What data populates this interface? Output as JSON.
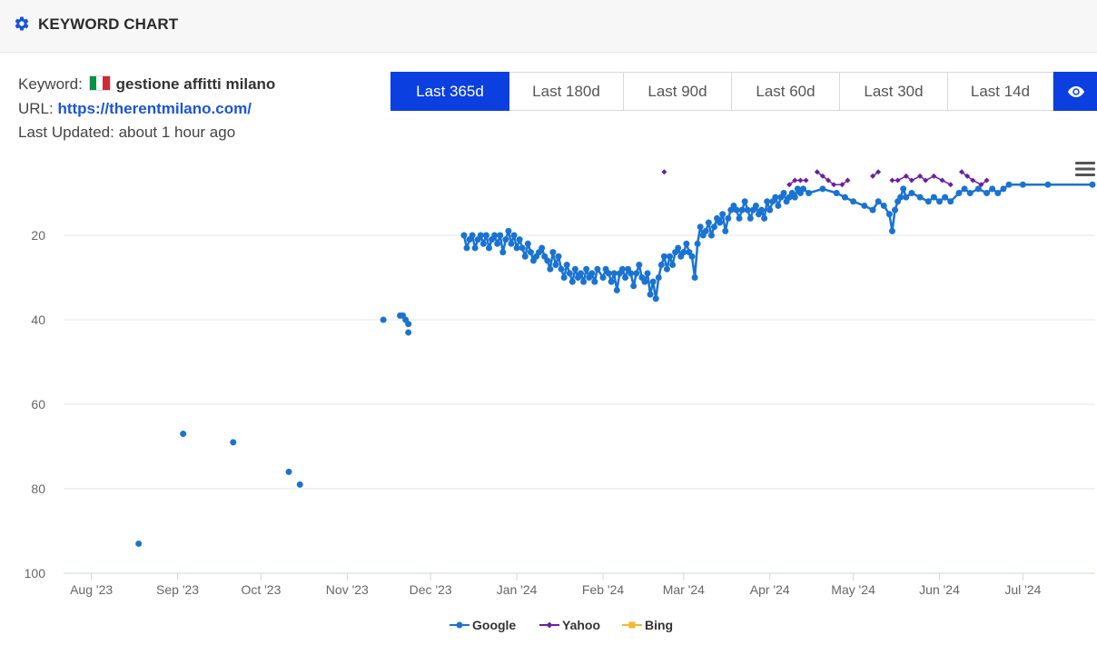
{
  "header": {
    "title": "KEYWORD CHART",
    "icon": "gear-icon"
  },
  "info": {
    "keyword_label": "Keyword:",
    "keyword": "gestione affitti milano",
    "flag": {
      "name": "italy-flag-icon",
      "colors": [
        "#009246",
        "#ffffff",
        "#ce2b37"
      ]
    },
    "url_label": "URL:",
    "url": "https://therentmilano.com/",
    "updated_label": "Last Updated:",
    "updated": "about 1 hour ago"
  },
  "ranges": {
    "buttons": [
      "Last 365d",
      "Last 180d",
      "Last 90d",
      "Last 60d",
      "Last 30d",
      "Last 14d"
    ],
    "active_index": 0,
    "eye_icon": "eye-icon"
  },
  "colors": {
    "accent": "#0b3fe0",
    "google": "#1a73d2",
    "yahoo": "#6b1fa0",
    "bing": "#f5b82e"
  },
  "chart_data": {
    "type": "line",
    "title": "",
    "xlabel": "",
    "ylabel": "",
    "y_reversed": true,
    "ylim": [
      100,
      5
    ],
    "y_ticks": [
      20,
      40,
      60,
      80,
      100
    ],
    "x_ticks": [
      {
        "date": "2023-08-01",
        "label": "Aug '23"
      },
      {
        "date": "2023-09-01",
        "label": "Sep '23"
      },
      {
        "date": "2023-10-01",
        "label": "Oct '23"
      },
      {
        "date": "2023-11-01",
        "label": "Nov '23"
      },
      {
        "date": "2023-12-01",
        "label": "Dec '23"
      },
      {
        "date": "2024-01-01",
        "label": "Jan '24"
      },
      {
        "date": "2024-02-01",
        "label": "Feb '24"
      },
      {
        "date": "2024-03-01",
        "label": "Mar '24"
      },
      {
        "date": "2024-04-01",
        "label": "Apr '24"
      },
      {
        "date": "2024-05-01",
        "label": "May '24"
      },
      {
        "date": "2024-06-01",
        "label": "Jun '24"
      },
      {
        "date": "2024-07-01",
        "label": "Jul '24"
      }
    ],
    "xlim": [
      "2023-07-22",
      "2024-07-27"
    ],
    "grid": true,
    "legend": "bottom-center",
    "series": [
      {
        "name": "Google",
        "color": "#1a73d2",
        "marker": "circle",
        "scatter_points": [
          [
            "2023-08-18",
            93
          ],
          [
            "2023-09-03",
            67
          ],
          [
            "2023-09-21",
            69
          ],
          [
            "2023-10-11",
            76
          ],
          [
            "2023-10-15",
            79
          ],
          [
            "2023-11-14",
            40
          ],
          [
            "2023-11-20",
            39
          ],
          [
            "2023-11-21",
            39
          ],
          [
            "2023-11-22",
            40
          ],
          [
            "2023-11-23",
            41
          ],
          [
            "2023-11-23",
            43
          ]
        ],
        "line_points": [
          [
            "2023-12-13",
            20
          ],
          [
            "2023-12-14",
            23
          ],
          [
            "2023-12-15",
            21
          ],
          [
            "2023-12-16",
            20
          ],
          [
            "2023-12-17",
            23
          ],
          [
            "2023-12-18",
            21
          ],
          [
            "2023-12-19",
            20
          ],
          [
            "2023-12-20",
            22
          ],
          [
            "2023-12-21",
            20
          ],
          [
            "2023-12-22",
            23
          ],
          [
            "2023-12-23",
            21
          ],
          [
            "2023-12-24",
            20
          ],
          [
            "2023-12-25",
            22
          ],
          [
            "2023-12-26",
            20
          ],
          [
            "2023-12-27",
            24
          ],
          [
            "2023-12-28",
            21
          ],
          [
            "2023-12-29",
            19
          ],
          [
            "2023-12-30",
            22
          ],
          [
            "2023-12-31",
            20
          ],
          [
            "2024-01-01",
            23
          ],
          [
            "2024-01-02",
            21
          ],
          [
            "2024-01-03",
            23
          ],
          [
            "2024-01-04",
            25
          ],
          [
            "2024-01-05",
            22
          ],
          [
            "2024-01-06",
            24
          ],
          [
            "2024-01-07",
            26
          ],
          [
            "2024-01-08",
            25
          ],
          [
            "2024-01-09",
            24
          ],
          [
            "2024-01-10",
            23
          ],
          [
            "2024-01-11",
            25
          ],
          [
            "2024-01-12",
            26
          ],
          [
            "2024-01-13",
            28
          ],
          [
            "2024-01-14",
            24
          ],
          [
            "2024-01-15",
            27
          ],
          [
            "2024-01-16",
            25
          ],
          [
            "2024-01-17",
            28
          ],
          [
            "2024-01-18",
            30
          ],
          [
            "2024-01-19",
            27
          ],
          [
            "2024-01-20",
            29
          ],
          [
            "2024-01-21",
            31
          ],
          [
            "2024-01-22",
            28
          ],
          [
            "2024-01-23",
            30
          ],
          [
            "2024-01-24",
            29
          ],
          [
            "2024-01-25",
            31
          ],
          [
            "2024-01-26",
            28
          ],
          [
            "2024-01-27",
            30
          ],
          [
            "2024-01-28",
            29
          ],
          [
            "2024-01-29",
            31
          ],
          [
            "2024-01-30",
            28
          ],
          [
            "2024-02-01",
            30
          ],
          [
            "2024-02-02",
            28
          ],
          [
            "2024-02-03",
            29
          ],
          [
            "2024-02-04",
            31
          ],
          [
            "2024-02-05",
            29
          ],
          [
            "2024-02-06",
            33
          ],
          [
            "2024-02-07",
            29
          ],
          [
            "2024-02-08",
            28
          ],
          [
            "2024-02-09",
            30
          ],
          [
            "2024-02-10",
            28
          ],
          [
            "2024-02-11",
            29
          ],
          [
            "2024-02-12",
            32
          ],
          [
            "2024-02-13",
            29
          ],
          [
            "2024-02-14",
            27
          ],
          [
            "2024-02-15",
            30
          ],
          [
            "2024-02-16",
            31
          ],
          [
            "2024-02-17",
            29
          ],
          [
            "2024-02-18",
            34
          ],
          [
            "2024-02-19",
            31
          ],
          [
            "2024-02-20",
            35
          ],
          [
            "2024-02-21",
            30
          ],
          [
            "2024-02-22",
            27
          ],
          [
            "2024-02-23",
            25
          ],
          [
            "2024-02-24",
            28
          ],
          [
            "2024-02-25",
            25
          ],
          [
            "2024-02-26",
            27
          ],
          [
            "2024-02-27",
            24
          ],
          [
            "2024-02-28",
            23
          ],
          [
            "2024-02-29",
            25
          ],
          [
            "2024-03-01",
            24
          ],
          [
            "2024-03-02",
            22
          ],
          [
            "2024-03-03",
            24
          ],
          [
            "2024-03-04",
            25
          ],
          [
            "2024-03-05",
            30
          ],
          [
            "2024-03-06",
            22
          ],
          [
            "2024-03-07",
            18
          ],
          [
            "2024-03-08",
            20
          ],
          [
            "2024-03-09",
            19
          ],
          [
            "2024-03-10",
            17
          ],
          [
            "2024-03-11",
            20
          ],
          [
            "2024-03-12",
            18
          ],
          [
            "2024-03-13",
            16
          ],
          [
            "2024-03-14",
            17
          ],
          [
            "2024-03-15",
            15
          ],
          [
            "2024-03-16",
            19
          ],
          [
            "2024-03-17",
            16
          ],
          [
            "2024-03-18",
            14
          ],
          [
            "2024-03-19",
            13
          ],
          [
            "2024-03-20",
            14
          ],
          [
            "2024-03-21",
            16
          ],
          [
            "2024-03-22",
            14
          ],
          [
            "2024-03-23",
            12
          ],
          [
            "2024-03-24",
            14
          ],
          [
            "2024-03-25",
            16
          ],
          [
            "2024-03-26",
            14
          ],
          [
            "2024-03-27",
            13
          ],
          [
            "2024-03-28",
            15
          ],
          [
            "2024-03-29",
            14
          ],
          [
            "2024-03-30",
            16
          ],
          [
            "2024-03-31",
            12
          ],
          [
            "2024-04-01",
            14
          ],
          [
            "2024-04-02",
            12
          ],
          [
            "2024-04-03",
            11
          ],
          [
            "2024-04-04",
            13
          ],
          [
            "2024-04-05",
            11
          ],
          [
            "2024-04-06",
            10
          ],
          [
            "2024-04-07",
            12
          ],
          [
            "2024-04-08",
            11
          ],
          [
            "2024-04-09",
            10
          ],
          [
            "2024-04-10",
            11
          ],
          [
            "2024-04-11",
            9
          ],
          [
            "2024-04-12",
            10
          ],
          [
            "2024-04-13",
            9
          ],
          [
            "2024-04-15",
            10
          ],
          [
            "2024-04-20",
            9
          ],
          [
            "2024-04-25",
            10
          ],
          [
            "2024-04-28",
            11
          ],
          [
            "2024-05-01",
            12
          ],
          [
            "2024-05-05",
            13
          ],
          [
            "2024-05-08",
            14
          ],
          [
            "2024-05-10",
            12
          ],
          [
            "2024-05-12",
            13
          ],
          [
            "2024-05-14",
            15
          ],
          [
            "2024-05-15",
            19
          ],
          [
            "2024-05-16",
            14
          ],
          [
            "2024-05-17",
            12
          ],
          [
            "2024-05-18",
            11
          ],
          [
            "2024-05-19",
            9
          ],
          [
            "2024-05-20",
            11
          ],
          [
            "2024-05-22",
            10
          ],
          [
            "2024-05-25",
            11
          ],
          [
            "2024-05-28",
            12
          ],
          [
            "2024-05-30",
            11
          ],
          [
            "2024-06-01",
            12
          ],
          [
            "2024-06-03",
            11
          ],
          [
            "2024-06-05",
            12
          ],
          [
            "2024-06-08",
            10
          ],
          [
            "2024-06-10",
            9
          ],
          [
            "2024-06-12",
            10
          ],
          [
            "2024-06-15",
            9
          ],
          [
            "2024-06-18",
            10
          ],
          [
            "2024-06-20",
            9
          ],
          [
            "2024-06-22",
            10
          ],
          [
            "2024-06-24",
            9
          ],
          [
            "2024-06-26",
            8
          ],
          [
            "2024-07-01",
            8
          ],
          [
            "2024-07-10",
            8
          ],
          [
            "2024-07-26",
            8
          ]
        ]
      },
      {
        "name": "Yahoo",
        "color": "#6b1fa0",
        "marker": "diamond",
        "points": [
          [
            "2024-02-23",
            5
          ],
          [
            "2024-04-08",
            8
          ],
          [
            "2024-04-10",
            7
          ],
          [
            "2024-04-12",
            7
          ],
          [
            "2024-04-14",
            7
          ],
          [
            "2024-04-18",
            5
          ],
          [
            "2024-04-20",
            6
          ],
          [
            "2024-04-22",
            7
          ],
          [
            "2024-04-24",
            8
          ],
          [
            "2024-04-27",
            8
          ],
          [
            "2024-04-29",
            7
          ],
          [
            "2024-05-08",
            6
          ],
          [
            "2024-05-10",
            5
          ],
          [
            "2024-05-15",
            7
          ],
          [
            "2024-05-17",
            7
          ],
          [
            "2024-05-20",
            6
          ],
          [
            "2024-05-22",
            7
          ],
          [
            "2024-05-25",
            6
          ],
          [
            "2024-05-27",
            7
          ],
          [
            "2024-05-30",
            6
          ],
          [
            "2024-06-02",
            7
          ],
          [
            "2024-06-05",
            8
          ],
          [
            "2024-06-09",
            5
          ],
          [
            "2024-06-11",
            6
          ],
          [
            "2024-06-13",
            7
          ],
          [
            "2024-06-16",
            8
          ],
          [
            "2024-06-18",
            7
          ]
        ]
      },
      {
        "name": "Bing",
        "color": "#f5b82e",
        "marker": "square",
        "points": []
      }
    ]
  }
}
